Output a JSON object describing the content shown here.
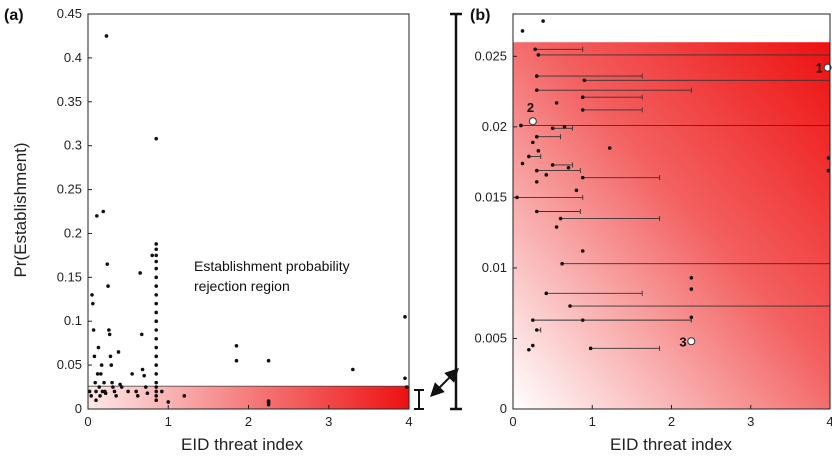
{
  "chart_data": [
    {
      "type": "scatter",
      "panel_label": "(a)",
      "xlabel": "EID threat index",
      "ylabel": "Pr(Establishment)",
      "xlim": [
        0,
        4
      ],
      "ylim": [
        0,
        0.45
      ],
      "xticks": [
        "0",
        "1",
        "2",
        "3",
        "4"
      ],
      "yticks": [
        "0",
        "0.05",
        "0.1",
        "0.15",
        "0.2",
        "0.25",
        "0.3",
        "0.35",
        "0.4",
        "0.45"
      ],
      "annotation_lines": [
        "Establishment probability",
        "rejection region"
      ],
      "rejection_region_upper": 0.026,
      "points": [
        [
          0.02,
          0.02
        ],
        [
          0.04,
          0.015
        ],
        [
          0.05,
          0.13
        ],
        [
          0.06,
          0.12
        ],
        [
          0.07,
          0.09
        ],
        [
          0.08,
          0.06
        ],
        [
          0.09,
          0.03
        ],
        [
          0.1,
          0.02
        ],
        [
          0.1,
          0.01
        ],
        [
          0.11,
          0.22
        ],
        [
          0.12,
          0.04
        ],
        [
          0.13,
          0.07
        ],
        [
          0.14,
          0.025
        ],
        [
          0.15,
          0.015
        ],
        [
          0.16,
          0.04
        ],
        [
          0.17,
          0.05
        ],
        [
          0.18,
          0.02
        ],
        [
          0.19,
          0.225
        ],
        [
          0.2,
          0.03
        ],
        [
          0.21,
          0.02
        ],
        [
          0.22,
          0.018
        ],
        [
          0.23,
          0.425
        ],
        [
          0.24,
          0.165
        ],
        [
          0.25,
          0.14
        ],
        [
          0.26,
          0.09
        ],
        [
          0.27,
          0.085
        ],
        [
          0.28,
          0.06
        ],
        [
          0.29,
          0.05
        ],
        [
          0.3,
          0.03
        ],
        [
          0.31,
          0.025
        ],
        [
          0.33,
          0.02
        ],
        [
          0.35,
          0.015
        ],
        [
          0.38,
          0.065
        ],
        [
          0.4,
          0.028
        ],
        [
          0.42,
          0.025
        ],
        [
          0.5,
          0.02
        ],
        [
          0.55,
          0.04
        ],
        [
          0.6,
          0.02
        ],
        [
          0.62,
          0.015
        ],
        [
          0.65,
          0.155
        ],
        [
          0.67,
          0.085
        ],
        [
          0.68,
          0.045
        ],
        [
          0.7,
          0.038
        ],
        [
          0.72,
          0.025
        ],
        [
          0.74,
          0.018
        ],
        [
          0.8,
          0.175
        ],
        [
          0.85,
          0.308
        ],
        [
          0.85,
          0.188
        ],
        [
          0.85,
          0.182
        ],
        [
          0.85,
          0.175
        ],
        [
          0.85,
          0.168
        ],
        [
          0.85,
          0.16
        ],
        [
          0.85,
          0.15
        ],
        [
          0.85,
          0.14
        ],
        [
          0.85,
          0.13
        ],
        [
          0.85,
          0.12
        ],
        [
          0.85,
          0.11
        ],
        [
          0.85,
          0.1
        ],
        [
          0.85,
          0.09
        ],
        [
          0.85,
          0.08
        ],
        [
          0.85,
          0.07
        ],
        [
          0.85,
          0.06
        ],
        [
          0.85,
          0.05
        ],
        [
          0.85,
          0.04
        ],
        [
          0.85,
          0.03
        ],
        [
          0.85,
          0.025
        ],
        [
          0.85,
          0.02
        ],
        [
          0.85,
          0.015
        ],
        [
          0.85,
          0.01
        ],
        [
          0.92,
          0.02
        ],
        [
          1.0,
          0.008
        ],
        [
          1.2,
          0.015
        ],
        [
          1.85,
          0.072
        ],
        [
          1.85,
          0.055
        ],
        [
          2.25,
          0.055
        ],
        [
          2.25,
          0.009
        ],
        [
          2.25,
          0.007
        ],
        [
          2.25,
          0.005
        ],
        [
          3.3,
          0.045
        ],
        [
          3.95,
          0.105
        ],
        [
          3.95,
          0.035
        ],
        [
          3.97,
          0.025
        ]
      ]
    },
    {
      "type": "scatter",
      "panel_label": "(b)",
      "xlabel": "EID threat index",
      "ylabel": "",
      "xlim": [
        0,
        4
      ],
      "ylim": [
        0,
        0.028
      ],
      "xticks": [
        "0",
        "1",
        "2",
        "3",
        "4"
      ],
      "yticks": [
        "0",
        "0.005",
        "0.01",
        "0.015",
        "0.02",
        "0.025"
      ],
      "rejection_region_upper": 0.026,
      "highlighted": [
        {
          "label": "1",
          "x": 3.97,
          "y": 0.0242
        },
        {
          "label": "2",
          "x": 0.25,
          "y": 0.0204
        },
        {
          "label": "3",
          "x": 2.25,
          "y": 0.0048
        }
      ],
      "points_with_range": [
        [
          0.28,
          0.0255,
          0.28,
          0.88
        ],
        [
          0.32,
          0.0251,
          0.32,
          4.0
        ],
        [
          0.3,
          0.0236,
          0.3,
          1.63
        ],
        [
          0.9,
          0.0233,
          0.9,
          4.0
        ],
        [
          0.3,
          0.0226,
          0.3,
          2.25
        ],
        [
          0.88,
          0.0221,
          0.88,
          1.63
        ],
        [
          0.88,
          0.0212,
          0.88,
          1.63
        ],
        [
          0.1,
          0.0201,
          0.1,
          4.0
        ],
        [
          0.5,
          0.0199,
          0.5,
          0.75
        ],
        [
          0.3,
          0.0193,
          0.3,
          0.6
        ],
        [
          0.2,
          0.0179,
          0.2,
          0.35
        ],
        [
          0.5,
          0.0173,
          0.5,
          0.75
        ],
        [
          0.3,
          0.0169,
          0.3,
          0.85
        ],
        [
          0.88,
          0.0164,
          0.88,
          1.85
        ],
        [
          0.05,
          0.015,
          0.05,
          0.88
        ],
        [
          0.3,
          0.014,
          0.3,
          0.85
        ],
        [
          0.6,
          0.0135,
          0.6,
          1.85
        ],
        [
          0.62,
          0.0103,
          0.62,
          4.0
        ],
        [
          0.42,
          0.0082,
          0.42,
          1.63
        ],
        [
          0.72,
          0.0073,
          0.72,
          4.0
        ],
        [
          0.25,
          0.0063,
          0.25,
          2.25
        ],
        [
          0.3,
          0.0056,
          0.3,
          0.35
        ],
        [
          0.98,
          0.0043,
          0.98,
          1.85
        ]
      ],
      "points": [
        [
          0.12,
          0.0268
        ],
        [
          0.38,
          0.0275
        ],
        [
          0.55,
          0.0217
        ],
        [
          0.65,
          0.02
        ],
        [
          0.25,
          0.0189
        ],
        [
          0.32,
          0.0183
        ],
        [
          0.42,
          0.0166
        ],
        [
          0.12,
          0.0174
        ],
        [
          0.3,
          0.0161
        ],
        [
          0.7,
          0.0171
        ],
        [
          1.22,
          0.0185
        ],
        [
          0.55,
          0.0129
        ],
        [
          0.8,
          0.0155
        ],
        [
          0.88,
          0.0112
        ],
        [
          2.25,
          0.0093
        ],
        [
          2.25,
          0.0085
        ],
        [
          0.88,
          0.0063
        ],
        [
          0.25,
          0.0045
        ],
        [
          0.2,
          0.0042
        ],
        [
          2.25,
          0.0065
        ],
        [
          3.98,
          0.0178
        ],
        [
          3.98,
          0.0169
        ]
      ]
    }
  ]
}
